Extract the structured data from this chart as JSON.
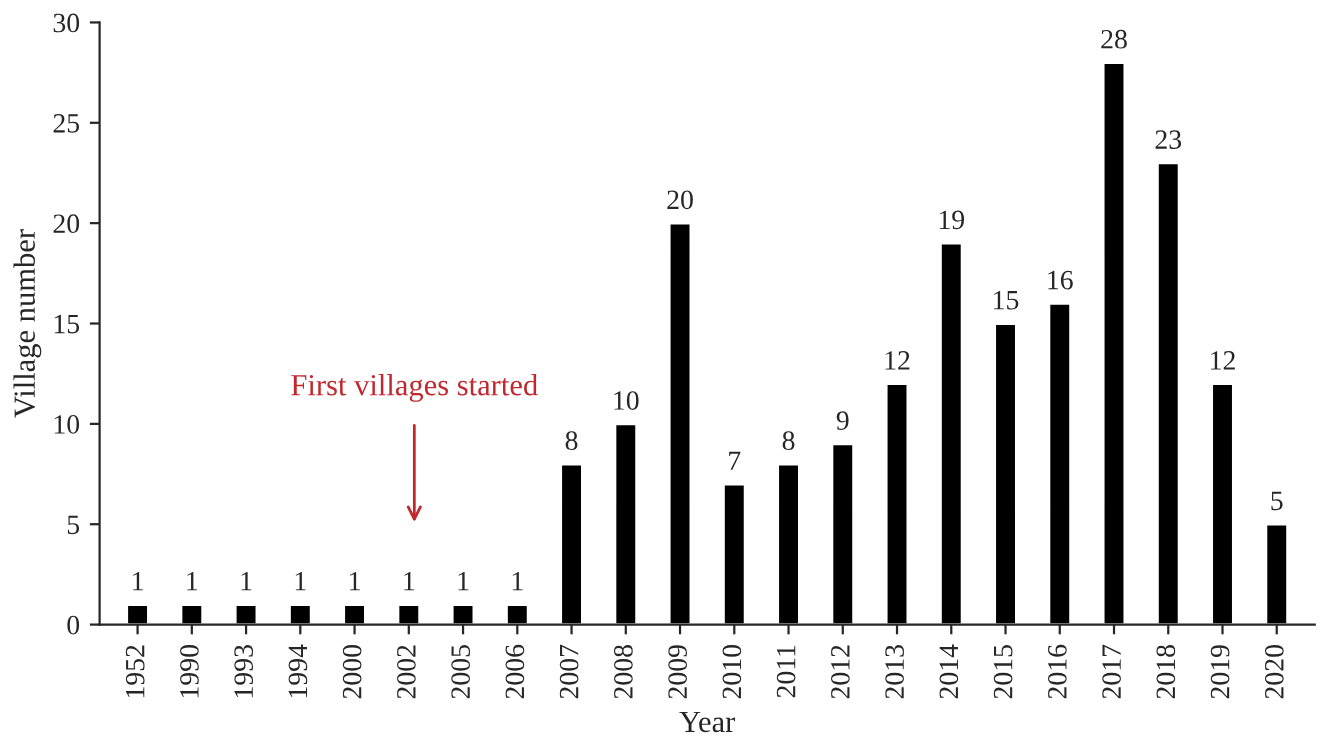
{
  "chart_data": {
    "type": "bar",
    "xlabel": "Year",
    "ylabel": "Village number",
    "categories": [
      "1952",
      "1990",
      "1993",
      "1994",
      "2000",
      "2002",
      "2005",
      "2006",
      "2007",
      "2008",
      "2009",
      "2010",
      "2011",
      "2012",
      "2013",
      "2014",
      "2015",
      "2016",
      "2017",
      "2018",
      "2019",
      "2020"
    ],
    "values": [
      1,
      1,
      1,
      1,
      1,
      1,
      1,
      1,
      8,
      10,
      20,
      7,
      8,
      9,
      12,
      19,
      15,
      16,
      28,
      23,
      12,
      5
    ],
    "color": "#000000",
    "ylim": [
      0,
      30
    ],
    "yticks": [
      0,
      5,
      10,
      15,
      20,
      25,
      30
    ],
    "grid": false,
    "data_labels": true,
    "annotations": [
      "First villages started"
    ]
  }
}
